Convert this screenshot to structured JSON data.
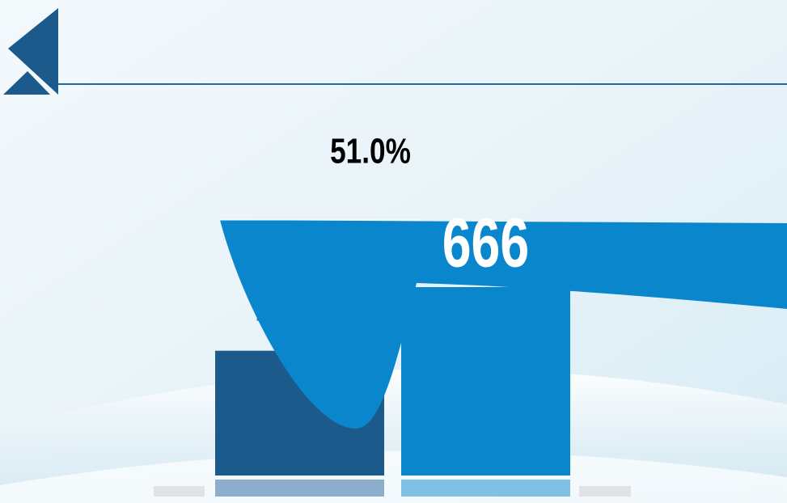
{
  "chart_data": {
    "type": "bar",
    "categories": [
      null,
      null
    ],
    "values": [
      441,
      666
    ],
    "colors": [
      "#1b5a8a",
      "#0a86cc"
    ],
    "annotation": "51.0%"
  }
}
